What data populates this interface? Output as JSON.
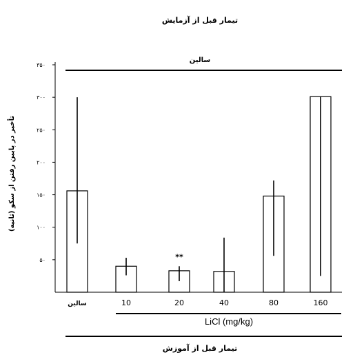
{
  "header": {
    "top_title": "تیمار قبل از آزمایش"
  },
  "footer": {
    "bottom_title": "تیمار قبل از آموزش"
  },
  "chart_data": {
    "type": "bar",
    "top_line_label": "سالین",
    "ylabel": "تأخیر در پایین رفتن از سکو (ثانیه)",
    "yticks": [
      "۵۰",
      "۱۰۰",
      "۱۵۰",
      "۲۰۰",
      "۲۵۰",
      "۳۰۰",
      "۳۵۰"
    ],
    "ytick_values": [
      50,
      100,
      150,
      200,
      250,
      300,
      350
    ],
    "ylim": [
      0,
      350
    ],
    "categories": [
      "سالین",
      "10",
      "20",
      "40",
      "80",
      "160"
    ],
    "values": [
      156,
      40,
      33,
      32,
      148,
      301
    ],
    "error_low": [
      75,
      26,
      17,
      0,
      56,
      25
    ],
    "error_high": [
      300,
      53,
      40,
      84,
      172,
      301
    ],
    "annotations": [
      {
        "category_index": 2,
        "text": "**"
      }
    ],
    "group_label": "LiCl (mg/kg)"
  }
}
